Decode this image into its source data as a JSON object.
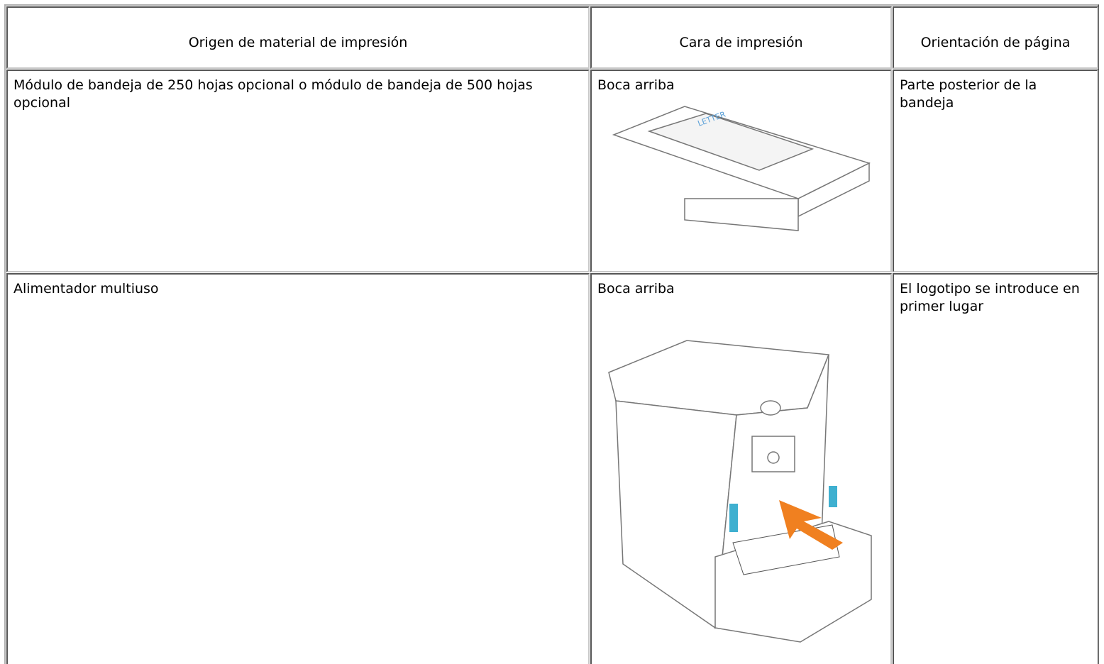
{
  "table": {
    "header": [
      "Origen de material de impresión",
      "Cara de impresión",
      "Orientación de página"
    ],
    "rows": [
      [
        "Módulo de bandeja de 250 hojas opcional o módulo de bandeja de 500 hojas opcional",
        "Boca arriba",
        "Parte posterior de la bandeja"
      ],
      [
        "Alimentador multiuso",
        "Boca arriba",
        "El logotipo se introduce en primer lugar"
      ]
    ]
  }
}
